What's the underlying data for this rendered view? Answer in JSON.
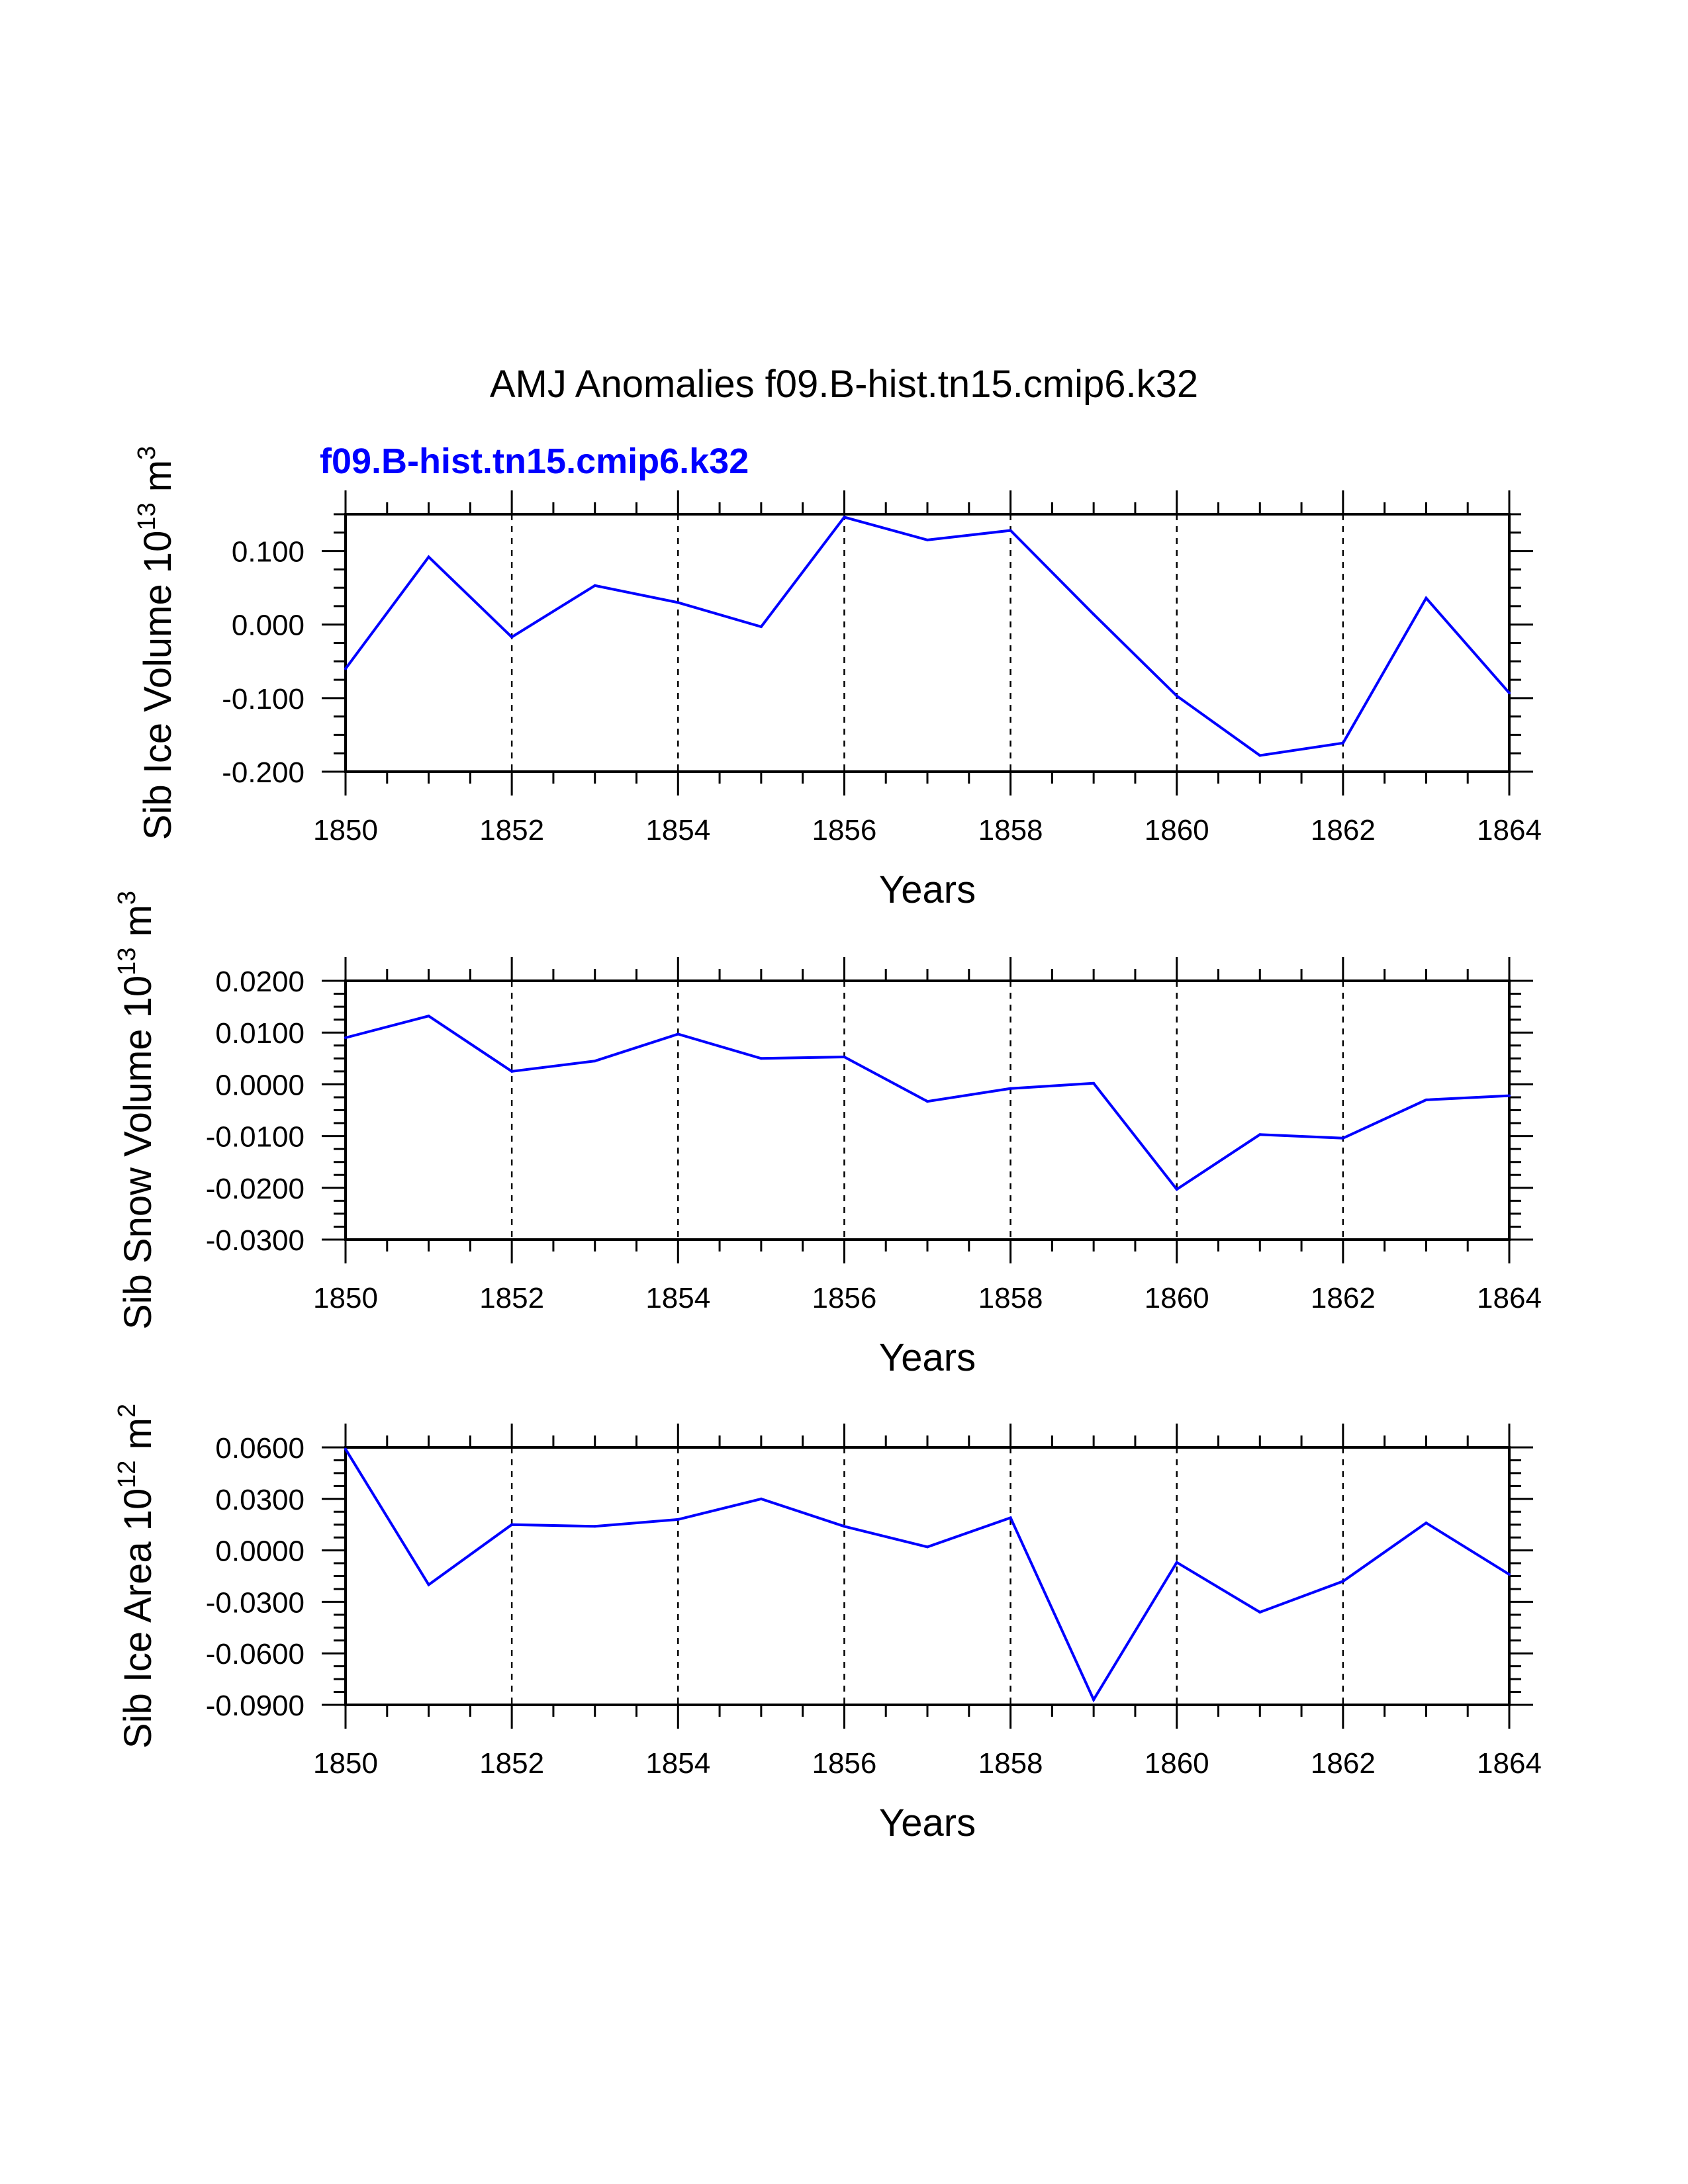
{
  "figure": {
    "title": "AMJ Anomalies f09.B-hist.tn15.cmip6.k32",
    "subtitle": "f09.B-hist.tn15.cmip6.k32",
    "subtitle_color": "#0000ff",
    "line_color": "#0000ff"
  },
  "chart_data": [
    {
      "type": "line",
      "title": "",
      "xlabel": "Years",
      "ylabel_main": "Sib Ice Volume 10",
      "ylabel_exp": "13",
      "ylabel_unit": " m",
      "ylabel_unit_exp": "3",
      "x": [
        1850,
        1851,
        1852,
        1853,
        1854,
        1855,
        1856,
        1857,
        1858,
        1859,
        1860,
        1861,
        1862,
        1863,
        1864
      ],
      "series": [
        {
          "name": "f09.B-hist.tn15.cmip6.k32",
          "values": [
            -0.06,
            0.092,
            -0.017,
            0.053,
            0.03,
            -0.003,
            0.146,
            0.115,
            0.128,
            0.014,
            -0.097,
            -0.178,
            -0.161,
            0.036,
            -0.093
          ]
        }
      ],
      "xlim": [
        1850,
        1864
      ],
      "ylim": [
        -0.2,
        0.15
      ],
      "x_ticks": [
        1850,
        1852,
        1854,
        1856,
        1858,
        1860,
        1862,
        1864
      ],
      "x_tick_labels": [
        "1850",
        "1852",
        "1854",
        "1856",
        "1858",
        "1860",
        "1862",
        "1864"
      ],
      "y_ticks": [
        -0.2,
        -0.1,
        0.0,
        0.1
      ],
      "y_tick_labels": [
        "-0.200",
        "-0.100",
        "0.000",
        "0.100"
      ],
      "y_minor_step": 0.025,
      "grid": "vertical dashed at labeled years"
    },
    {
      "type": "line",
      "title": "",
      "xlabel": "Years",
      "ylabel_main": "Sib Snow Volume 10",
      "ylabel_exp": "13",
      "ylabel_unit": " m",
      "ylabel_unit_exp": "3",
      "x": [
        1850,
        1851,
        1852,
        1853,
        1854,
        1855,
        1856,
        1857,
        1858,
        1859,
        1860,
        1861,
        1862,
        1863,
        1864
      ],
      "series": [
        {
          "name": "f09.B-hist.tn15.cmip6.k32",
          "values": [
            0.009,
            0.0132,
            0.0025,
            0.0045,
            0.0097,
            0.005,
            0.0053,
            -0.0033,
            -0.0008,
            0.0002,
            -0.0203,
            -0.0097,
            -0.0104,
            -0.003,
            -0.0022
          ]
        }
      ],
      "xlim": [
        1850,
        1864
      ],
      "ylim": [
        -0.03,
        0.02
      ],
      "x_ticks": [
        1850,
        1852,
        1854,
        1856,
        1858,
        1860,
        1862,
        1864
      ],
      "x_tick_labels": [
        "1850",
        "1852",
        "1854",
        "1856",
        "1858",
        "1860",
        "1862",
        "1864"
      ],
      "y_ticks": [
        -0.03,
        -0.02,
        -0.01,
        0.0,
        0.01,
        0.02
      ],
      "y_tick_labels": [
        "-0.0300",
        "-0.0200",
        "-0.0100",
        "0.0000",
        "0.0100",
        "0.0200"
      ],
      "y_minor_step": 0.0025,
      "grid": "vertical dashed at labeled years"
    },
    {
      "type": "line",
      "title": "",
      "xlabel": "Years",
      "ylabel_main": "Sib Ice Area 10",
      "ylabel_exp": "12",
      "ylabel_unit": " m",
      "ylabel_unit_exp": "2",
      "x": [
        1850,
        1851,
        1852,
        1853,
        1854,
        1855,
        1856,
        1857,
        1858,
        1859,
        1860,
        1861,
        1862,
        1863,
        1864
      ],
      "series": [
        {
          "name": "f09.B-hist.tn15.cmip6.k32",
          "values": [
            0.059,
            -0.02,
            0.015,
            0.014,
            0.018,
            0.03,
            0.014,
            0.002,
            0.019,
            -0.087,
            -0.007,
            -0.036,
            -0.018,
            0.016,
            -0.014
          ]
        }
      ],
      "xlim": [
        1850,
        1864
      ],
      "ylim": [
        -0.09,
        0.06
      ],
      "x_ticks": [
        1850,
        1852,
        1854,
        1856,
        1858,
        1860,
        1862,
        1864
      ],
      "x_tick_labels": [
        "1850",
        "1852",
        "1854",
        "1856",
        "1858",
        "1860",
        "1862",
        "1864"
      ],
      "y_ticks": [
        -0.09,
        -0.06,
        -0.03,
        0.0,
        0.03,
        0.06
      ],
      "y_tick_labels": [
        "-0.0900",
        "-0.0600",
        "-0.0300",
        "0.0000",
        "0.0300",
        "0.0600"
      ],
      "y_minor_step": 0.0075,
      "grid": "vertical dashed at labeled years"
    }
  ]
}
